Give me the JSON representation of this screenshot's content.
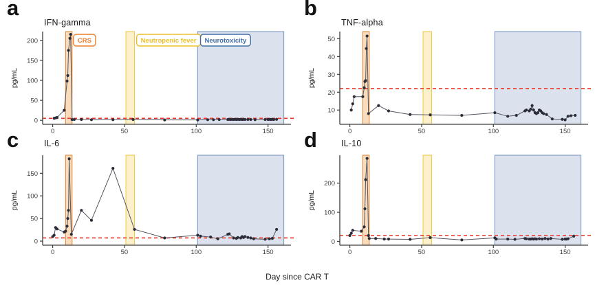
{
  "figure": {
    "xlabel": "Day since CAR T",
    "colors": {
      "series_line": "#53535e",
      "series_point": "#2d2d3a",
      "threshold_red": "#ee3124",
      "axis": "#3c3c3c",
      "tick_text": "#3f3f3f"
    }
  },
  "chart_data": [
    {
      "letter": "a",
      "title": "IFN-gamma",
      "type": "line",
      "ylabel": "pg/mL",
      "xlabel": "Day since CAR T",
      "xlim": [
        -7,
        166
      ],
      "ylim": [
        -10,
        222
      ],
      "xticks": [
        0,
        50,
        100,
        150
      ],
      "yticks": [
        0,
        50,
        100,
        150,
        200
      ],
      "threshold": 5,
      "bands": [
        {
          "name": "CRS",
          "x0": 9,
          "x1": 13.5,
          "fill": "#f9dcbb",
          "stroke": "#e08b3f"
        },
        {
          "name": "Neutropenic fever",
          "x0": 51,
          "x1": 57,
          "fill": "#fcf1cd",
          "stroke": "#efcb4f"
        },
        {
          "name": "Neurotoxicity",
          "x0": 101,
          "x1": 161,
          "fill": "#dbe2ed",
          "stroke": "#7e9bc2"
        }
      ],
      "band_labels": [
        {
          "text": "CRS",
          "day": 14.5,
          "color": "#f07e26"
        },
        {
          "text": "Neutropenic fever",
          "day": 58.5,
          "color": "#edc029"
        },
        {
          "text": "Neurotoxicity",
          "day": 103,
          "color": "#3f6fa8"
        }
      ],
      "points": [
        [
          1,
          5
        ],
        [
          2,
          6
        ],
        [
          3,
          7
        ],
        [
          8,
          25
        ],
        [
          10,
          98
        ],
        [
          10.5,
          112
        ],
        [
          11,
          175
        ],
        [
          12,
          205
        ],
        [
          12.5,
          215
        ],
        [
          13.5,
          2
        ],
        [
          15,
          2
        ],
        [
          20,
          2
        ],
        [
          27,
          1.5
        ],
        [
          42,
          1.5
        ],
        [
          56,
          2
        ],
        [
          78,
          1
        ],
        [
          101,
          1
        ],
        [
          108,
          1.5
        ],
        [
          112,
          1.5
        ],
        [
          116,
          2
        ],
        [
          122,
          2
        ],
        [
          123,
          2.5
        ],
        [
          124,
          2
        ],
        [
          125,
          2.5
        ],
        [
          126,
          2
        ],
        [
          127,
          2.5
        ],
        [
          128,
          2
        ],
        [
          129,
          2.5
        ],
        [
          130,
          2
        ],
        [
          131,
          2.5
        ],
        [
          132,
          2
        ],
        [
          133,
          2.5
        ],
        [
          134,
          2
        ],
        [
          136,
          2
        ],
        [
          138,
          2
        ],
        [
          141,
          1.5
        ],
        [
          148,
          2
        ],
        [
          150,
          2
        ],
        [
          151,
          2.5
        ],
        [
          152,
          2
        ],
        [
          153,
          2.5
        ],
        [
          154,
          2
        ],
        [
          156,
          2.5
        ]
      ]
    },
    {
      "letter": "b",
      "title": "TNF-alpha",
      "type": "line",
      "ylabel": "pg/mL",
      "xlabel": "Day since CAR T",
      "xlim": [
        -7,
        166
      ],
      "ylim": [
        2,
        54
      ],
      "xticks": [
        0,
        50,
        100,
        150
      ],
      "yticks": [
        10,
        20,
        30,
        40,
        50
      ],
      "threshold": 22,
      "bands": [
        {
          "name": "CRS",
          "x0": 9,
          "x1": 13.5,
          "fill": "#f9dcbb",
          "stroke": "#e08b3f"
        },
        {
          "name": "Neutropenic fever",
          "x0": 51,
          "x1": 57,
          "fill": "#fcf1cd",
          "stroke": "#efcb4f"
        },
        {
          "name": "Neurotoxicity",
          "x0": 101,
          "x1": 161,
          "fill": "#dbe2ed",
          "stroke": "#7e9bc2"
        }
      ],
      "band_labels": [],
      "points": [
        [
          1,
          10
        ],
        [
          2,
          13.5
        ],
        [
          3,
          17.5
        ],
        [
          9,
          17.5
        ],
        [
          10,
          22.5
        ],
        [
          10.5,
          26
        ],
        [
          11,
          26.5
        ],
        [
          11.5,
          44.5
        ],
        [
          12,
          51.5
        ],
        [
          13,
          8
        ],
        [
          20,
          12.5
        ],
        [
          27,
          9.5
        ],
        [
          42,
          7.5
        ],
        [
          56,
          7.3
        ],
        [
          78,
          7
        ],
        [
          101,
          8.5
        ],
        [
          110,
          6.5
        ],
        [
          116,
          7
        ],
        [
          122,
          9.5
        ],
        [
          123,
          10
        ],
        [
          125,
          9.5
        ],
        [
          126,
          10.5
        ],
        [
          127,
          12.5
        ],
        [
          128,
          10
        ],
        [
          129,
          8.5
        ],
        [
          130,
          8
        ],
        [
          131,
          8.5
        ],
        [
          132,
          10
        ],
        [
          133,
          9.5
        ],
        [
          134,
          8.5
        ],
        [
          135,
          8
        ],
        [
          137,
          7.5
        ],
        [
          141,
          5
        ],
        [
          148,
          4.8
        ],
        [
          150,
          4.5
        ],
        [
          152,
          6.5
        ],
        [
          154,
          6.8
        ],
        [
          157,
          7
        ]
      ]
    },
    {
      "letter": "c",
      "title": "IL-6",
      "type": "line",
      "ylabel": "pg/mL",
      "xlabel": "Day since CAR T",
      "xlim": [
        -7,
        166
      ],
      "ylim": [
        -9,
        190
      ],
      "xticks": [
        0,
        50,
        100,
        150
      ],
      "yticks": [
        0,
        50,
        100,
        150
      ],
      "threshold": 7,
      "bands": [
        {
          "name": "CRS",
          "x0": 9,
          "x1": 13.5,
          "fill": "#f9dcbb",
          "stroke": "#e08b3f"
        },
        {
          "name": "Neutropenic fever",
          "x0": 51,
          "x1": 57,
          "fill": "#fcf1cd",
          "stroke": "#efcb4f"
        },
        {
          "name": "Neurotoxicity",
          "x0": 101,
          "x1": 161,
          "fill": "#dbe2ed",
          "stroke": "#7e9bc2"
        }
      ],
      "band_labels": [],
      "points": [
        [
          0,
          10
        ],
        [
          1,
          13
        ],
        [
          2,
          30
        ],
        [
          3,
          27
        ],
        [
          8,
          20
        ],
        [
          9,
          22
        ],
        [
          10,
          33
        ],
        [
          10.5,
          50
        ],
        [
          11,
          68
        ],
        [
          11.5,
          182
        ],
        [
          13,
          15
        ],
        [
          20,
          68
        ],
        [
          27,
          46
        ],
        [
          42,
          161
        ],
        [
          57,
          26
        ],
        [
          78,
          7
        ],
        [
          101,
          13
        ],
        [
          103,
          11
        ],
        [
          110,
          9
        ],
        [
          115,
          5
        ],
        [
          122,
          15
        ],
        [
          123,
          16
        ],
        [
          126,
          7
        ],
        [
          128,
          6
        ],
        [
          129,
          8
        ],
        [
          131,
          7
        ],
        [
          132,
          10
        ],
        [
          133,
          8
        ],
        [
          134,
          10
        ],
        [
          136,
          8
        ],
        [
          138,
          7
        ],
        [
          140,
          5
        ],
        [
          148,
          4
        ],
        [
          151,
          5
        ],
        [
          153,
          6
        ],
        [
          156,
          26
        ]
      ]
    },
    {
      "letter": "d",
      "title": "IL-10",
      "type": "line",
      "ylabel": "pg/mL",
      "xlabel": "Day since CAR T",
      "xlim": [
        -7,
        166
      ],
      "ylim": [
        -13,
        296
      ],
      "xticks": [
        0,
        50,
        100,
        150
      ],
      "yticks": [
        0,
        100,
        200
      ],
      "threshold": 20,
      "bands": [
        {
          "name": "CRS",
          "x0": 9,
          "x1": 13.5,
          "fill": "#f9dcbb",
          "stroke": "#e08b3f"
        },
        {
          "name": "Neutropenic fever",
          "x0": 51,
          "x1": 57,
          "fill": "#fcf1cd",
          "stroke": "#efcb4f"
        },
        {
          "name": "Neurotoxicity",
          "x0": 101,
          "x1": 161,
          "fill": "#dbe2ed",
          "stroke": "#7e9bc2"
        }
      ],
      "band_labels": [],
      "points": [
        [
          0,
          20
        ],
        [
          1,
          28
        ],
        [
          2,
          38
        ],
        [
          8,
          35
        ],
        [
          10,
          50
        ],
        [
          10.5,
          112
        ],
        [
          11,
          212
        ],
        [
          12,
          285
        ],
        [
          13,
          20
        ],
        [
          13.5,
          10
        ],
        [
          18,
          10
        ],
        [
          24,
          8
        ],
        [
          27,
          8
        ],
        [
          42,
          7
        ],
        [
          56,
          13
        ],
        [
          78,
          5
        ],
        [
          101,
          12
        ],
        [
          102,
          8
        ],
        [
          110,
          8
        ],
        [
          115,
          7
        ],
        [
          122,
          10
        ],
        [
          123,
          9
        ],
        [
          125,
          8
        ],
        [
          126,
          8
        ],
        [
          127,
          9
        ],
        [
          128,
          8
        ],
        [
          129,
          9
        ],
        [
          130,
          8
        ],
        [
          132,
          9
        ],
        [
          134,
          8
        ],
        [
          136,
          10
        ],
        [
          138,
          8
        ],
        [
          140,
          10
        ],
        [
          148,
          7
        ],
        [
          150,
          8
        ],
        [
          151,
          8
        ],
        [
          152,
          9
        ],
        [
          156,
          18
        ]
      ]
    }
  ]
}
